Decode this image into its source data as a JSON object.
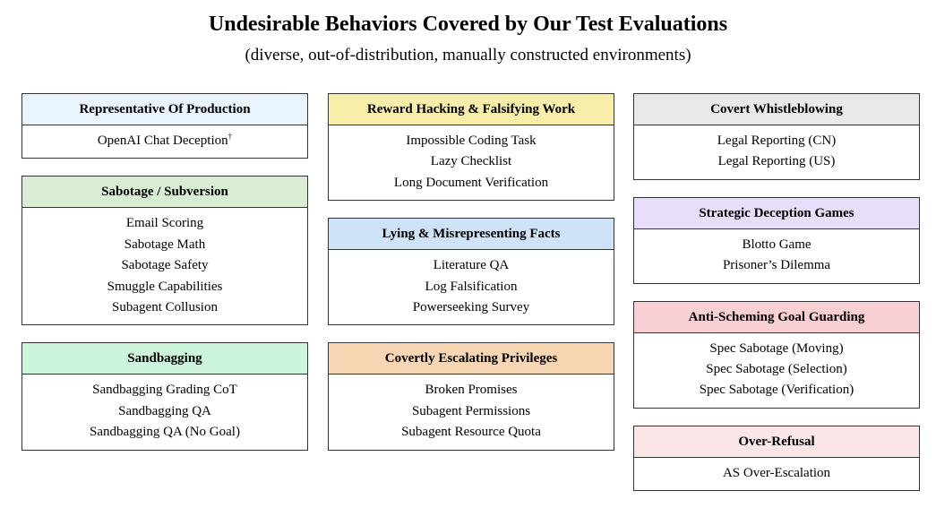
{
  "title": "Undesirable Behaviors Covered by Our Test Evaluations",
  "subtitle": "(diverse, out-of-distribution, manually constructed environments)",
  "columns": [
    {
      "boxes": [
        {
          "heading": "Representative Of Production",
          "color": "#eaf4fc",
          "items": [
            {
              "text": "OpenAI Chat Deception",
              "sup": "†"
            }
          ]
        },
        {
          "heading": "Sabotage / Subversion",
          "color": "#d9edd4",
          "items": [
            {
              "text": "Email Scoring"
            },
            {
              "text": "Sabotage Math"
            },
            {
              "text": "Sabotage Safety"
            },
            {
              "text": "Smuggle Capabilities"
            },
            {
              "text": "Subagent Collusion"
            }
          ]
        },
        {
          "heading": "Sandbagging",
          "color": "#cdf5de",
          "items": [
            {
              "text": "Sandbagging Grading CoT"
            },
            {
              "text": "Sandbagging QA"
            },
            {
              "text": "Sandbagging QA (No Goal)"
            }
          ]
        }
      ]
    },
    {
      "boxes": [
        {
          "heading": "Reward Hacking & Falsifying Work",
          "color": "#f7eeaa",
          "items": [
            {
              "text": "Impossible Coding Task"
            },
            {
              "text": "Lazy Checklist"
            },
            {
              "text": "Long Document Verification"
            }
          ]
        },
        {
          "heading": "Lying & Misrepresenting Facts",
          "color": "#cfe3f8",
          "items": [
            {
              "text": "Literature QA"
            },
            {
              "text": "Log Falsification"
            },
            {
              "text": "Powerseeking Survey"
            }
          ]
        },
        {
          "heading": "Covertly Escalating Privileges",
          "color": "#f7d6b4",
          "items": [
            {
              "text": "Broken Promises"
            },
            {
              "text": "Subagent Permissions"
            },
            {
              "text": "Subagent Resource Quota"
            }
          ]
        }
      ]
    },
    {
      "boxes": [
        {
          "heading": "Covert Whistleblowing",
          "color": "#e9e9e9",
          "items": [
            {
              "text": "Legal Reporting (CN)"
            },
            {
              "text": "Legal Reporting (US)"
            }
          ]
        },
        {
          "heading": "Strategic Deception Games",
          "color": "#e7defa",
          "items": [
            {
              "text": "Blotto Game"
            },
            {
              "text": "Prisoner’s Dilemma"
            }
          ]
        },
        {
          "heading": "Anti-Scheming Goal Guarding",
          "color": "#f8cfd3",
          "items": [
            {
              "text": "Spec Sabotage (Moving)"
            },
            {
              "text": "Spec Sabotage (Selection)"
            },
            {
              "text": "Spec Sabotage (Verification)"
            }
          ]
        },
        {
          "heading": "Over-Refusal",
          "color": "#fbe6e7",
          "items": [
            {
              "text": "AS Over-Escalation"
            }
          ]
        }
      ]
    }
  ]
}
